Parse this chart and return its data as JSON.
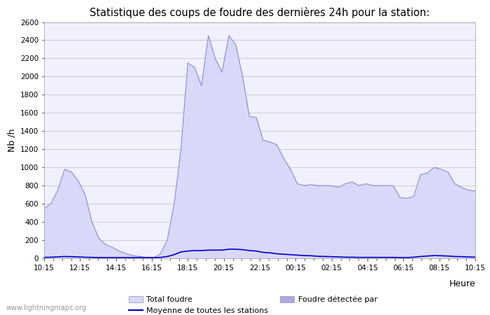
{
  "title": "Statistique des coups de foudre des dernières 24h pour la station:",
  "xlabel": "Heure",
  "ylabel": "Nb /h",
  "ylim": [
    0,
    2600
  ],
  "yticks": [
    0,
    200,
    400,
    600,
    800,
    1000,
    1200,
    1400,
    1600,
    1800,
    2000,
    2200,
    2400,
    2600
  ],
  "xtick_labels": [
    "10:15",
    "12:15",
    "14:15",
    "16:15",
    "18:15",
    "20:15",
    "22:15",
    "00:15",
    "02:15",
    "04:15",
    "06:15",
    "08:15",
    "10:15"
  ],
  "background_color": "#ffffff",
  "plot_bg_color": "#f0f0ff",
  "grid_color": "#cccccc",
  "area_fill_color": "#d8d8f8",
  "area_edge_color": "#8888cc",
  "line_color": "#0000cc",
  "watermark": "www.lightningmaps.org",
  "legend_labels": [
    "Total foudre",
    "Moyenne de toutes les stations",
    "Foudre détectée par"
  ],
  "total_foudre": [
    550,
    600,
    750,
    980,
    950,
    850,
    700,
    400,
    220,
    150,
    120,
    80,
    50,
    30,
    20,
    10,
    5,
    50,
    200,
    600,
    1200,
    2150,
    2100,
    1900,
    2450,
    2200,
    2050,
    2450,
    2350,
    2000,
    1560,
    1550,
    1300,
    1280,
    1250,
    1100,
    980,
    820,
    800,
    810,
    800,
    800,
    800,
    780,
    820,
    840,
    800,
    820,
    800,
    800,
    800,
    800,
    670,
    660,
    680,
    920,
    940,
    1000,
    980,
    950,
    820,
    780,
    750,
    740
  ],
  "moyenne_stations": [
    10,
    12,
    15,
    20,
    18,
    15,
    12,
    10,
    8,
    8,
    8,
    8,
    8,
    8,
    8,
    8,
    8,
    10,
    20,
    40,
    70,
    80,
    85,
    85,
    90,
    90,
    90,
    100,
    100,
    95,
    85,
    80,
    65,
    60,
    50,
    45,
    40,
    35,
    30,
    28,
    22,
    20,
    18,
    15,
    12,
    12,
    10,
    10,
    10,
    10,
    10,
    10,
    8,
    8,
    12,
    20,
    25,
    30,
    28,
    25,
    20,
    18,
    15,
    12
  ],
  "n_ticks": 13,
  "n_points": 64
}
